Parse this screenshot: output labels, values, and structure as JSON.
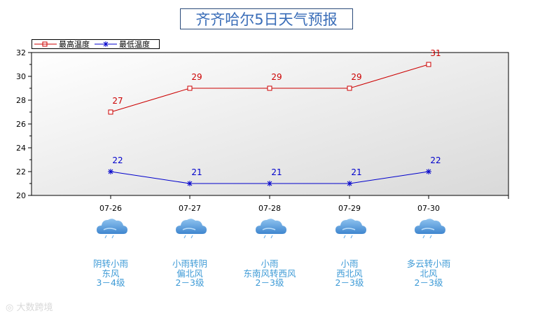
{
  "title": "齐齐哈尔5日天气预报",
  "colors": {
    "high": "#cc0000",
    "low": "#0000cc",
    "text": "#3d9ad6"
  },
  "chart_data": {
    "type": "line",
    "title": "齐齐哈尔5日天气预报",
    "categories": [
      "07-26",
      "07-27",
      "07-28",
      "07-29",
      "07-30"
    ],
    "series": [
      {
        "name": "最高温度",
        "values": [
          27,
          29,
          29,
          29,
          31
        ],
        "marker": "square",
        "color": "#cc0000"
      },
      {
        "name": "最低温度",
        "values": [
          22,
          21,
          21,
          21,
          22
        ],
        "marker": "asterisk",
        "color": "#0000cc"
      }
    ],
    "ylim": [
      20,
      32
    ],
    "yticks": [
      20,
      22,
      24,
      26,
      28,
      30,
      32
    ],
    "legend": "top-left",
    "grid": false
  },
  "forecast": [
    {
      "date": "07-26",
      "weather": "阴转小雨",
      "wind": "东风",
      "level": "3－4级",
      "icon": "rain-cloud-icon"
    },
    {
      "date": "07-27",
      "weather": "小雨转阴",
      "wind": "偏北风",
      "level": "2－3级",
      "icon": "rain-cloud-icon"
    },
    {
      "date": "07-28",
      "weather": "小雨",
      "wind": "东南风转西风",
      "level": "2－3级",
      "icon": "rain-cloud-icon"
    },
    {
      "date": "07-29",
      "weather": "小雨",
      "wind": "西北风",
      "level": "2－3级",
      "icon": "rain-cloud-icon"
    },
    {
      "date": "07-30",
      "weather": "多云转小雨",
      "wind": "北风",
      "level": "2－3级",
      "icon": "rain-cloud-icon"
    }
  ],
  "watermark": "大数跨境"
}
